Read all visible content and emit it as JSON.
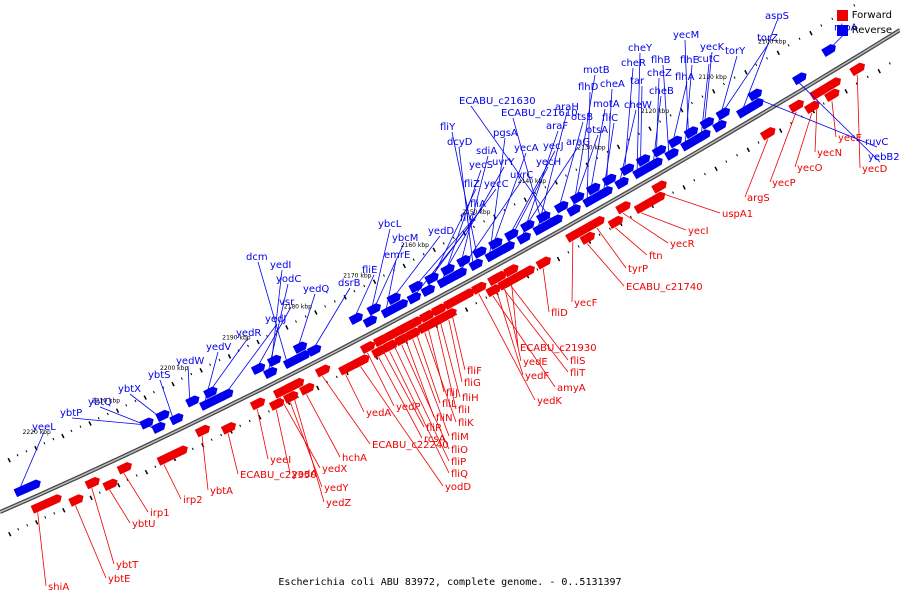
{
  "caption": "Escherichia coli ABU 83972, complete genome. - 0..5131397",
  "legend": [
    {
      "label": "Forward",
      "color": "#ee0000"
    },
    {
      "label": "Reverse",
      "color": "#0000ee"
    }
  ],
  "colors": {
    "forward": "#ee0000",
    "reverse": "#0000ee",
    "backbone": "#666666",
    "tick": "#000000"
  },
  "scale_ticks": [
    "2220 kbp",
    "2210 kbp",
    "2200 kbp",
    "2190 kbp",
    "2180 kbp",
    "2170 kbp",
    "2160 kbp",
    "2150 kbp",
    "2140 kbp",
    "2130 kbp",
    "2120 kbp",
    "2110 kbp",
    "2100 kbp"
  ],
  "forward_genes": [
    "shiA",
    "ybtE",
    "ybtT",
    "ybtU",
    "irp1",
    "irp2",
    "ybtA",
    "ECABU_c22350",
    "yeeI",
    "yodA",
    "yedX",
    "yedY",
    "yedZ",
    "hchA",
    "ECABU_c22240",
    "yedA",
    "yedP",
    "rcsA",
    "fliR",
    "fliQ",
    "fliP",
    "fliO",
    "fliN",
    "fliM",
    "fliL",
    "fliK",
    "fliJ",
    "fliI",
    "fliH",
    "fliG",
    "fliF",
    "yodD",
    "yedK",
    "amyA",
    "fliT",
    "fliS",
    "yedF",
    "yedE",
    "ECABU_c21930",
    "fliD",
    "yecF",
    "ECABU_c21740",
    "tyrP",
    "ftn",
    "yecR",
    "yecI",
    "uspA1",
    "argS",
    "yecP",
    "yecO",
    "yecN",
    "yecE",
    "yecD"
  ],
  "reverse_genes": [
    "yeeL",
    "ybtP",
    "ybtQ",
    "ybtX",
    "ybtS",
    "yedW",
    "yedV",
    "yedR",
    "yedJ",
    "vsr",
    "yodC",
    "yedI",
    "dcm",
    "yedQ",
    "dsrB",
    "fliE",
    "ybcM",
    "ybcL",
    "emrE",
    "yedD",
    "fliC",
    "fliA",
    "fliZ",
    "yecC",
    "yecS",
    "uvrY",
    "uvrC",
    "sdiA",
    "dcyD",
    "fliY",
    "pgsA",
    "yecA",
    "yecH",
    "yecJ",
    "araF",
    "araG",
    "araH",
    "ECABU_c21610",
    "ECABU_c21630",
    "otsB",
    "otsA",
    "motB",
    "flhD",
    "motA",
    "fliC",
    "cheA",
    "cheW",
    "cheR",
    "cheY",
    "tar",
    "cheB",
    "cheZ",
    "flhB",
    "flhA",
    "flhE",
    "yecM",
    "cutC",
    "yecK",
    "torY",
    "torZ",
    "aspS",
    "ruvC",
    "yebB2",
    "ntpA"
  ]
}
